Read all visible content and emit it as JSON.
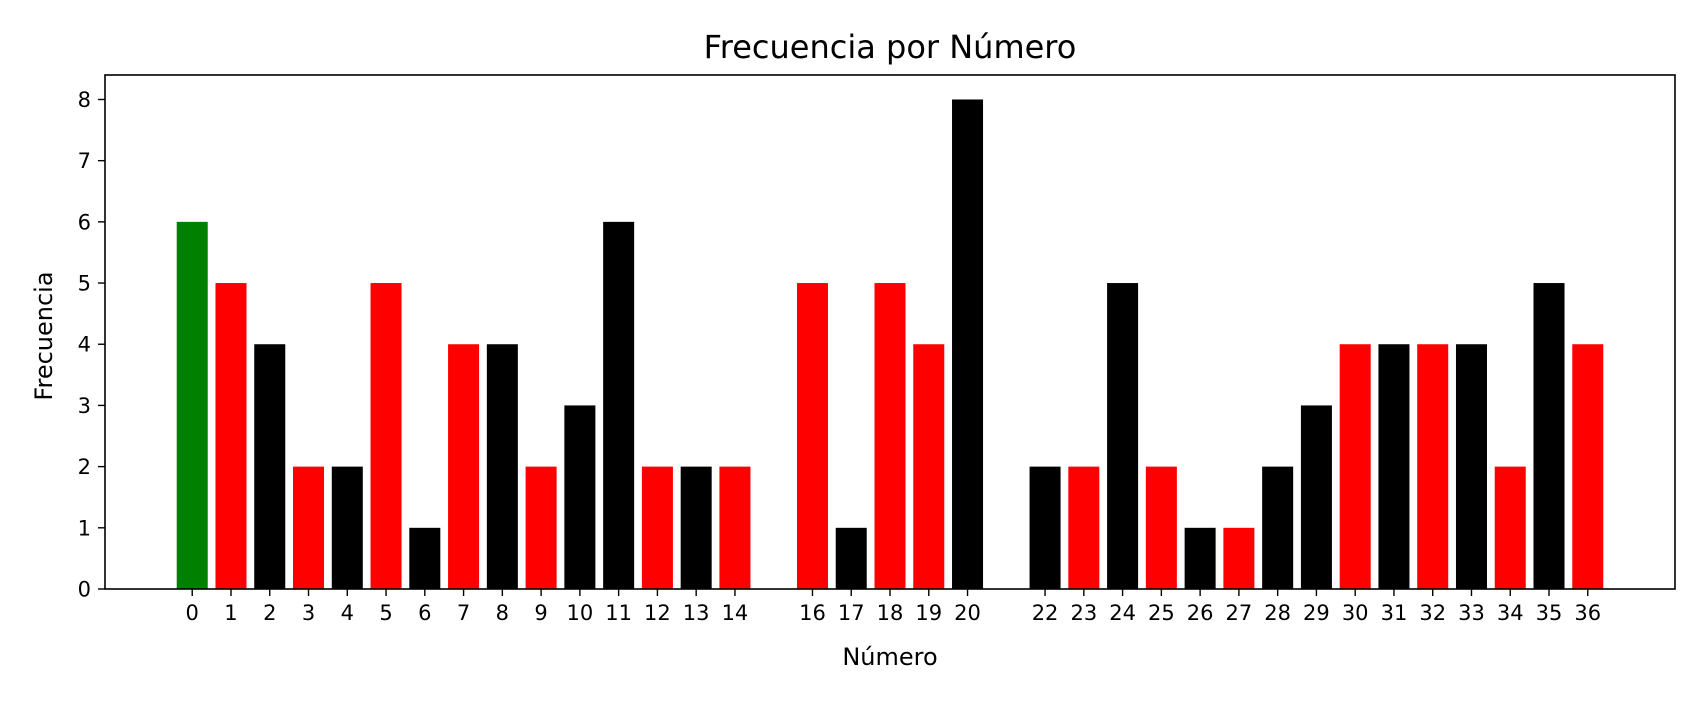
{
  "chart_data": {
    "type": "bar",
    "title": "Frecuencia por Número",
    "xlabel": "Número",
    "ylabel": "Frecuencia",
    "x_range": [
      -2.25,
      38.25
    ],
    "ylim": [
      0,
      8.4
    ],
    "yticks": [
      0,
      1,
      2,
      3,
      4,
      5,
      6,
      7,
      8
    ],
    "grid": false,
    "legend": "none",
    "bar_width": 0.8,
    "colors": {
      "green": "#008000",
      "red": "#ff0000",
      "black": "#000000"
    },
    "bars": [
      {
        "x": 0,
        "label": "0",
        "value": 6,
        "color": "green"
      },
      {
        "x": 1,
        "label": "1",
        "value": 5,
        "color": "red"
      },
      {
        "x": 2,
        "label": "2",
        "value": 4,
        "color": "black"
      },
      {
        "x": 3,
        "label": "3",
        "value": 2,
        "color": "red"
      },
      {
        "x": 4,
        "label": "4",
        "value": 2,
        "color": "black"
      },
      {
        "x": 5,
        "label": "5",
        "value": 5,
        "color": "red"
      },
      {
        "x": 6,
        "label": "6",
        "value": 1,
        "color": "black"
      },
      {
        "x": 7,
        "label": "7",
        "value": 4,
        "color": "red"
      },
      {
        "x": 8,
        "label": "8",
        "value": 4,
        "color": "black"
      },
      {
        "x": 9,
        "label": "9",
        "value": 2,
        "color": "red"
      },
      {
        "x": 10,
        "label": "10",
        "value": 3,
        "color": "black"
      },
      {
        "x": 11,
        "label": "11",
        "value": 6,
        "color": "black"
      },
      {
        "x": 12,
        "label": "12",
        "value": 2,
        "color": "red"
      },
      {
        "x": 13,
        "label": "13",
        "value": 2,
        "color": "black"
      },
      {
        "x": 14,
        "label": "14",
        "value": 2,
        "color": "red"
      },
      {
        "x": 16,
        "label": "16",
        "value": 5,
        "color": "red"
      },
      {
        "x": 17,
        "label": "17",
        "value": 1,
        "color": "black"
      },
      {
        "x": 18,
        "label": "18",
        "value": 5,
        "color": "red"
      },
      {
        "x": 19,
        "label": "19",
        "value": 4,
        "color": "red"
      },
      {
        "x": 20,
        "label": "20",
        "value": 8,
        "color": "black"
      },
      {
        "x": 22,
        "label": "22",
        "value": 2,
        "color": "black"
      },
      {
        "x": 23,
        "label": "23",
        "value": 2,
        "color": "red"
      },
      {
        "x": 24,
        "label": "24",
        "value": 5,
        "color": "black"
      },
      {
        "x": 25,
        "label": "25",
        "value": 2,
        "color": "red"
      },
      {
        "x": 26,
        "label": "26",
        "value": 1,
        "color": "black"
      },
      {
        "x": 27,
        "label": "27",
        "value": 1,
        "color": "red"
      },
      {
        "x": 28,
        "label": "28",
        "value": 2,
        "color": "black"
      },
      {
        "x": 29,
        "label": "29",
        "value": 3,
        "color": "black"
      },
      {
        "x": 30,
        "label": "30",
        "value": 4,
        "color": "red"
      },
      {
        "x": 31,
        "label": "31",
        "value": 4,
        "color": "black"
      },
      {
        "x": 32,
        "label": "32",
        "value": 4,
        "color": "red"
      },
      {
        "x": 33,
        "label": "33",
        "value": 4,
        "color": "black"
      },
      {
        "x": 34,
        "label": "34",
        "value": 2,
        "color": "red"
      },
      {
        "x": 35,
        "label": "35",
        "value": 5,
        "color": "black"
      },
      {
        "x": 36,
        "label": "36",
        "value": 4,
        "color": "red"
      }
    ]
  }
}
